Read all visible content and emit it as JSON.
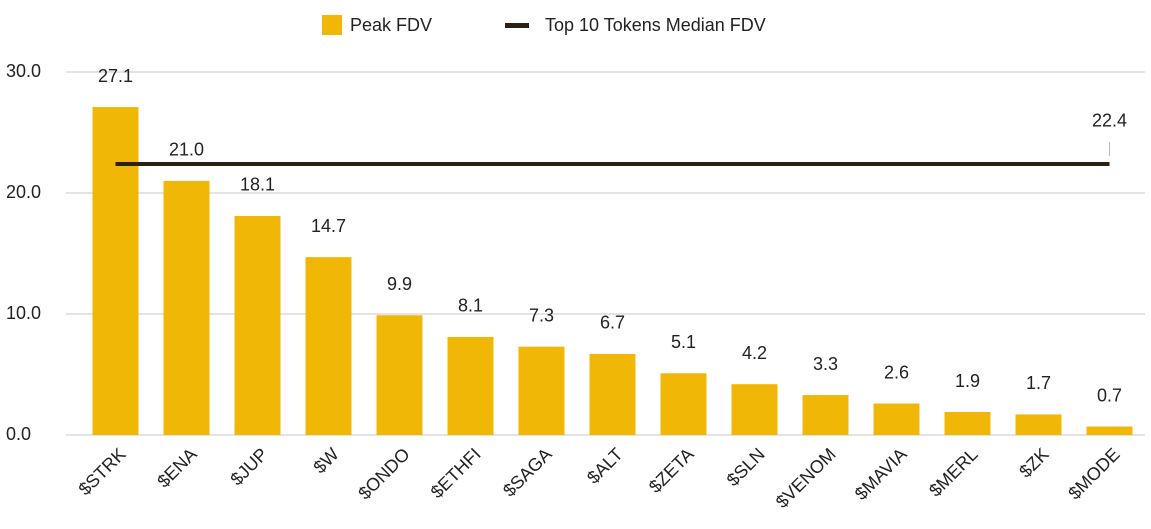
{
  "chart_data": {
    "type": "bar",
    "categories": [
      "$STRK",
      "$ENA",
      "$JUP",
      "$W",
      "$ONDO",
      "$ETHFI",
      "$SAGA",
      "$ALT",
      "$ZETA",
      "$SLN",
      "$VENOM",
      "$MAVIA",
      "$MERL",
      "$ZK",
      "$MODE"
    ],
    "series": [
      {
        "name": "Peak FDV",
        "color": "#f1b707",
        "values": [
          27.1,
          21.0,
          18.1,
          14.7,
          9.9,
          8.1,
          7.3,
          6.7,
          5.1,
          4.2,
          3.3,
          2.6,
          1.9,
          1.7,
          0.7
        ],
        "value_labels": [
          "27.1",
          "21.0",
          "18.1",
          "14.7",
          "9.9",
          "8.1",
          "7.3",
          "6.7",
          "5.1",
          "4.2",
          "3.3",
          "2.6",
          "1.9",
          "1.7",
          "0.7"
        ]
      }
    ],
    "reference_line": {
      "name": "Top 10 Tokens Median FDV",
      "color": "#2b2112",
      "value": 22.4,
      "value_label": "22.4"
    },
    "ylim": [
      0,
      30
    ],
    "yticks": [
      {
        "value": 0,
        "label": "0.0"
      },
      {
        "value": 10,
        "label": "10.0"
      },
      {
        "value": 20,
        "label": "20.0"
      },
      {
        "value": 30,
        "label": "30.0"
      }
    ],
    "grid": true,
    "legend": "top"
  }
}
